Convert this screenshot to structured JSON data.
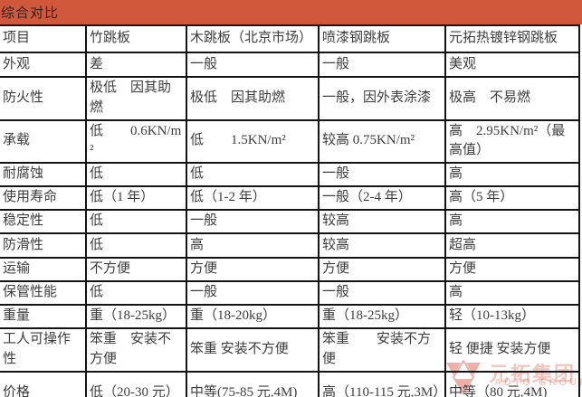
{
  "banner": {
    "title": "综合对比",
    "bg_color": "#d2583c"
  },
  "table": {
    "columns": [
      "项目",
      "竹跳板",
      "木跳板（北京市场）",
      "喷漆钢跳板",
      "元拓热镀锌钢跳板"
    ],
    "rows": [
      {
        "label": "外观",
        "cells": [
          "差",
          "一般",
          "一般",
          "美观"
        ]
      },
      {
        "label": "防火性",
        "cells": [
          "极低　因其助燃",
          "极低　因其助燃",
          "一般，因外表涂漆",
          "极高　不易燃"
        ]
      },
      {
        "label": "承载",
        "cells": [
          "低　　0.6KN/m²",
          "低　　1.5KN/m²",
          "较高 0.75KN/m²",
          "高　2.95KN/m²（最高值）"
        ]
      },
      {
        "label": "耐腐蚀",
        "cells": [
          "低",
          "低",
          "一般",
          "高"
        ]
      },
      {
        "label": "使用寿命",
        "cells": [
          "低（1 年）",
          "低（1-2 年）",
          "一般（2-4 年）",
          "高（5 年）"
        ]
      },
      {
        "label": "稳定性",
        "cells": [
          "低",
          "一般",
          "较高",
          "高"
        ]
      },
      {
        "label": "防滑性",
        "cells": [
          "低",
          "高",
          "较高",
          "超高"
        ]
      },
      {
        "label": "运输",
        "cells": [
          "不方便",
          "方便",
          "方便",
          "方便"
        ]
      },
      {
        "label": "保管性能",
        "cells": [
          "低",
          "一般",
          "一般",
          "高"
        ]
      },
      {
        "label": "重量",
        "cells": [
          "重（18-25kg）",
          "重（18-20kg）",
          "重（18-25kg）",
          "轻（10-13kg）"
        ]
      },
      {
        "label": "工人可操作性",
        "cells": [
          "笨重　安装不方便",
          "笨重 安装不方便",
          "笨重　　安装不方便",
          "轻 便捷 安装方便"
        ]
      },
      {
        "label": "价格",
        "cells": [
          "低（20-30 元）",
          "中等(75-85 元,4M)",
          "高（110-115 元,3M）",
          "中等（80 元,4M)"
        ]
      }
    ]
  },
  "watermark": {
    "text": "元拓集团",
    "subtext": "ADTO GROUP",
    "color": "#dd4f3c"
  }
}
